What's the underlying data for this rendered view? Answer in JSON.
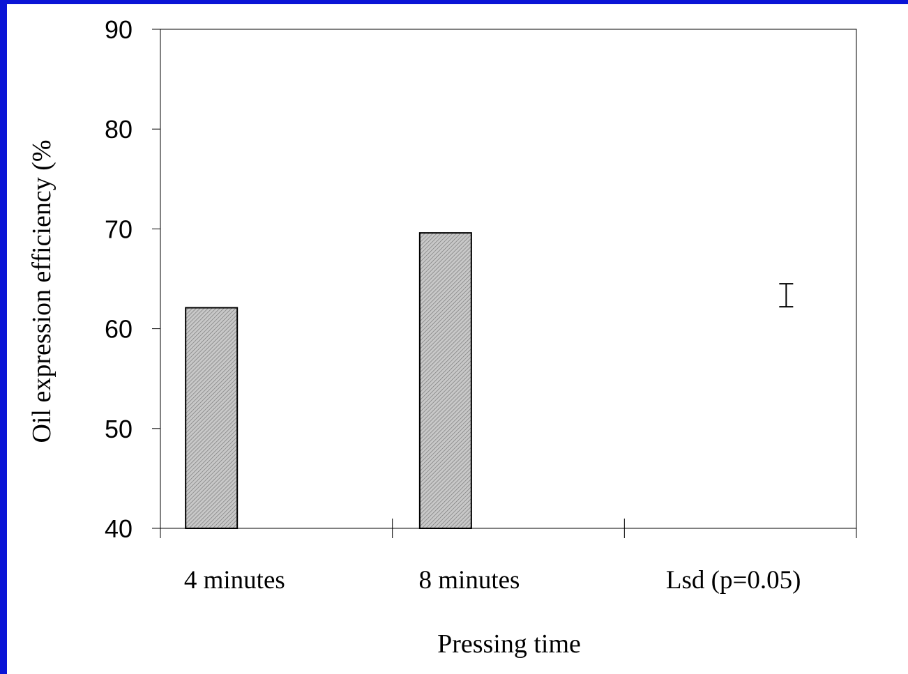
{
  "colors": {
    "frame": "#0a14d6",
    "background": "#ffffff",
    "bar_fill": "#c8c8c8",
    "ink": "#000000"
  },
  "chart_data": {
    "type": "bar",
    "title": "",
    "xlabel": "Pressing time",
    "ylabel": "Oil expression efficiency (%",
    "ylim": [
      40,
      90
    ],
    "yticks": [
      40,
      50,
      60,
      70,
      80,
      90
    ],
    "categories": [
      "4 minutes",
      "8 minutes",
      "Lsd (p=0.05)"
    ],
    "values": [
      62.1,
      69.6,
      null
    ],
    "lsd_marker": {
      "category": "Lsd (p=0.05)",
      "low": 62.2,
      "high": 64.5
    },
    "bar_pattern": "diagonal hatch",
    "grid": false,
    "legend": "none"
  }
}
